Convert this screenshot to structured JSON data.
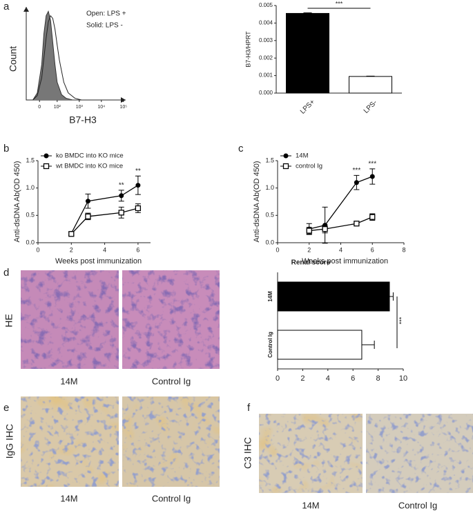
{
  "panel_letters": [
    "a",
    "b",
    "c",
    "d",
    "e",
    "f"
  ],
  "images": {
    "d": {
      "row_label": "HE",
      "captions": [
        "14M",
        "Control Ig"
      ]
    },
    "e": {
      "row_label": "IgG IHC",
      "captions": [
        "14M",
        "Control Ig"
      ]
    },
    "f": {
      "row_label": "C3 IHC",
      "captions": [
        "14M",
        "Control Ig"
      ]
    }
  },
  "chart_data": [
    {
      "type": "area",
      "xlabel": "B7-H3",
      "ylabel": "Count",
      "xlim": [
        0.6,
        5.1
      ],
      "ylim": [
        0,
        105
      ],
      "xticks": [
        {
          "value": 1.2,
          "label": "0"
        },
        {
          "value": 2,
          "label": "10²"
        },
        {
          "value": 3,
          "label": "10³"
        },
        {
          "value": 4,
          "label": "10⁴"
        },
        {
          "value": 5,
          "label": "10⁵"
        }
      ],
      "series": [
        {
          "name": "Open: LPS +",
          "color": "#222",
          "fill": "none",
          "x": [
            0.9,
            1.1,
            1.3,
            1.5,
            1.6,
            1.7,
            1.8,
            1.9,
            2.0,
            2.1,
            2.3,
            2.5,
            2.8,
            3.1
          ],
          "values": [
            0,
            5,
            25,
            70,
            88,
            95,
            92,
            80,
            62,
            45,
            20,
            8,
            2,
            0
          ]
        },
        {
          "name": "Solid: LPS -",
          "color": "#333",
          "fill": "#777",
          "x": [
            0.9,
            1.1,
            1.3,
            1.4,
            1.5,
            1.6,
            1.7,
            1.8,
            1.9,
            2.0,
            2.2,
            2.4,
            2.7
          ],
          "values": [
            0,
            8,
            40,
            75,
            95,
            100,
            90,
            65,
            40,
            20,
            6,
            2,
            0
          ]
        }
      ]
    },
    {
      "type": "bar",
      "ylabel": "B7-H3/HPRT",
      "categories": [
        "LPS+",
        "LPS-"
      ],
      "values": [
        0.00455,
        0.00095
      ],
      "errors": [
        3e-05,
        2e-05
      ],
      "colors": [
        "#000000",
        "#ffffff"
      ],
      "ylim": [
        0,
        0.005
      ],
      "yticks": [
        {
          "value": 0,
          "label": "0.000"
        },
        {
          "value": 0.001,
          "label": "0.001"
        },
        {
          "value": 0.002,
          "label": "0.002"
        },
        {
          "value": 0.003,
          "label": "0.003"
        },
        {
          "value": 0.004,
          "label": "0.004"
        },
        {
          "value": 0.005,
          "label": "0.005"
        }
      ],
      "annotation": "***"
    },
    {
      "type": "line",
      "xlabel": "Weeks post immunization",
      "ylabel": "Anti-dsDNA Ab(OD 450)",
      "x": [
        2,
        3,
        5,
        6
      ],
      "xlim": [
        0,
        6.75
      ],
      "xticks": [
        0,
        2,
        4,
        6
      ],
      "ylim": [
        0,
        1.5
      ],
      "yticks": [
        {
          "value": 0,
          "label": "0.0"
        },
        {
          "value": 0.5,
          "label": "0.5"
        },
        {
          "value": 1,
          "label": "1.0"
        },
        {
          "value": 1.5,
          "label": "1.5"
        }
      ],
      "series": [
        {
          "name": "ko BMDC into KO mice",
          "marker": "circle",
          "color": "#000",
          "values": [
            0.17,
            0.76,
            0.86,
            1.05
          ],
          "errors": [
            0.03,
            0.13,
            0.1,
            0.17
          ]
        },
        {
          "name": "wt BMDC into KO mice",
          "marker": "square",
          "color": "#000",
          "values": [
            0.16,
            0.48,
            0.55,
            0.63
          ],
          "errors": [
            0.03,
            0.06,
            0.1,
            0.08
          ]
        }
      ],
      "annotations": [
        {
          "text": "**",
          "x": 5
        },
        {
          "text": "**",
          "x": 6
        }
      ]
    },
    {
      "type": "line",
      "xlabel": "Weeks post immunization",
      "ylabel": "Anti-dsDNA Ab(OD 450)",
      "x": [
        2,
        3,
        5,
        6
      ],
      "xlim": [
        0,
        8
      ],
      "xticks": [
        0,
        2,
        4,
        6,
        8
      ],
      "ylim": [
        0,
        1.5
      ],
      "yticks": [
        {
          "value": 0,
          "label": "0.0"
        },
        {
          "value": 0.5,
          "label": "0.5"
        },
        {
          "value": 1,
          "label": "1.0"
        },
        {
          "value": 1.5,
          "label": "1.5"
        }
      ],
      "series": [
        {
          "name": "14M",
          "marker": "circle",
          "color": "#000",
          "values": [
            0.25,
            0.32,
            1.1,
            1.21
          ],
          "errors": [
            0.1,
            0.33,
            0.13,
            0.14
          ]
        },
        {
          "name": "control Ig",
          "marker": "square",
          "color": "#000",
          "values": [
            0.22,
            0.25,
            0.35,
            0.47
          ],
          "errors": [
            0.06,
            0.07,
            0.03,
            0.06
          ]
        }
      ],
      "annotations": [
        {
          "text": "***",
          "x": 5
        },
        {
          "text": "***",
          "x": 6
        }
      ]
    },
    {
      "type": "hbar",
      "title": "Renal score",
      "categories": [
        "14M",
        "Control Ig"
      ],
      "values": [
        8.9,
        6.7
      ],
      "errors": [
        0.3,
        1.0
      ],
      "colors": [
        "#000000",
        "#ffffff"
      ],
      "xlim": [
        0,
        10
      ],
      "xticks": [
        0,
        2,
        4,
        6,
        8,
        10
      ],
      "annotation": "***"
    }
  ]
}
